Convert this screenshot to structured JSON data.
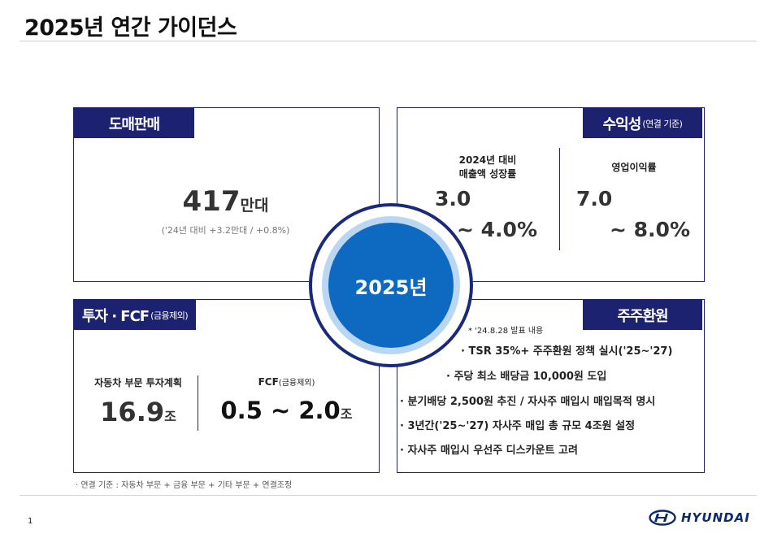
{
  "page": {
    "title": "2025년 연간 가이던스",
    "page_number": "1",
    "footnote": "· 연결 기준 : 자동차 부문 + 금융 부문 + 기타 부문 + 연결조정"
  },
  "wholesale": {
    "tab": "도매판매",
    "value": "417",
    "unit": "만대",
    "note": "('24년 대비 +3.2만대 / +0.8%)"
  },
  "profit": {
    "tab": "수익성",
    "tab_note": "(연결 기준)",
    "growth_label_1": "2024년 대비",
    "growth_label_2": "매출액 성장률",
    "growth_from": "3.0",
    "growth_to": "~ 4.0%",
    "margin_label": "영업이익률",
    "margin_from": "7.0",
    "margin_to": "~ 8.0%"
  },
  "center": {
    "label": "2025년"
  },
  "investment": {
    "tab": "투자 · FCF",
    "tab_note": "(금융제외)",
    "capex_label": "자동차 부문 투자계획",
    "capex_value": "16.9",
    "capex_unit": "조",
    "fcf_label": "FCF",
    "fcf_label_note": "(금융제외)",
    "fcf_value": "0.5 ~ 2.0",
    "fcf_unit": "조"
  },
  "shareholder": {
    "tab": "주주환원",
    "note": "* '24.8.28 발표 내용",
    "items": [
      "· TSR 35%+ 주주환원 정책 실시('25~'27)",
      "· 주당 최소 배당금 10,000원 도입",
      "· 분기배당 2,500원 추진 / 자사주 매입시 매입목적 명시",
      "· 3년간('25~'27) 자사주 매입 총 규모 4조원 설정",
      "· 자사주 매입시 우선주 디스카운트 고려"
    ]
  },
  "logo": {
    "text": "HYUNDAI"
  },
  "colors": {
    "navy": "#1c2170",
    "blue": "#0d6ac0",
    "light_blue": "#b9d7f2"
  }
}
